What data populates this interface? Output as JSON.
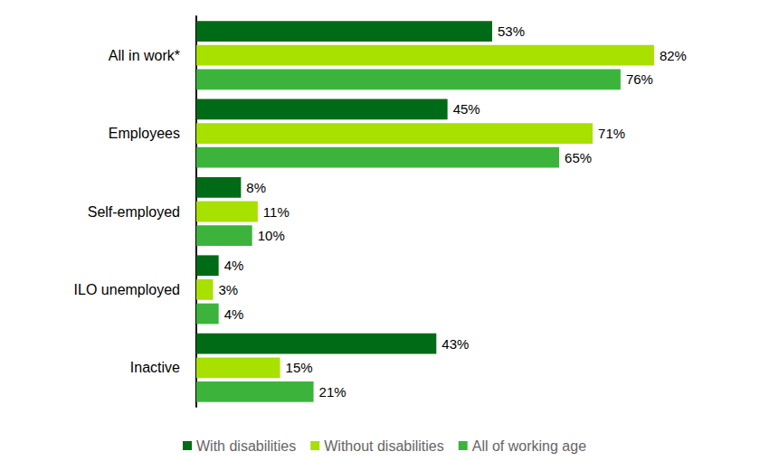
{
  "chart_data": {
    "type": "bar",
    "orientation": "horizontal",
    "categories": [
      "All in work*",
      "Employees",
      "Self-employed",
      "ILO unemployed",
      "Inactive"
    ],
    "series": [
      {
        "name": "With disabilities",
        "color": "#006b17",
        "values": [
          53,
          45,
          8,
          4,
          43
        ],
        "value_labels": [
          "53%",
          "45%",
          "8%",
          "4%",
          "43%"
        ]
      },
      {
        "name": "Without disabilities",
        "color": "#a8e000",
        "values": [
          82,
          71,
          11,
          3,
          15
        ],
        "value_labels": [
          "82%",
          "71%",
          "11%",
          "3%",
          "15%"
        ]
      },
      {
        "name": "All of working age",
        "color": "#3cb43c",
        "values": [
          76,
          65,
          10,
          4,
          21
        ],
        "value_labels": [
          "76%",
          "65%",
          "10%",
          "4%",
          "21%"
        ]
      }
    ],
    "xlim": [
      0,
      100
    ],
    "data_labels": true,
    "tick_labels": "y",
    "grid": false,
    "legend": "bottom"
  }
}
